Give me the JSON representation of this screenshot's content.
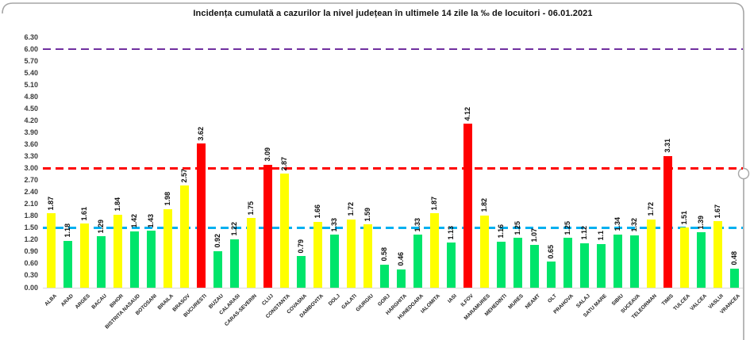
{
  "chart_data": {
    "type": "bar",
    "title": "Incidența cumulată a cazurilor la nivel județean în ultimele 14 zile la ‰ de locuitori - 06.01.2021",
    "categories": [
      "ALBA",
      "ARAD",
      "ARGES",
      "BACAU",
      "BIHOR",
      "BISTRITA NASAUD",
      "BOTOSANI",
      "BRAILA",
      "BRASOV",
      "BUCURESTI",
      "BUZAU",
      "CALARASI",
      "CARAS-SEVERIN",
      "CLUJ",
      "CONSTANTA",
      "COVASNA",
      "DAMBOVITA",
      "DOLJ",
      "GALATI",
      "GIURGIU",
      "GORJ",
      "HARGHITA",
      "HUNEDOARA",
      "IALOMITA",
      "IASI",
      "ILFOV",
      "MARAMURES",
      "MEHEDINTI",
      "MURES",
      "NEAMT",
      "OLT",
      "PRAHOVA",
      "SALAJ",
      "SATU MARE",
      "SIBIU",
      "SUCEAVA",
      "TELEORMAN",
      "TIMIS",
      "TULCEA",
      "VALCEA",
      "VASLUI",
      "VRANCEA"
    ],
    "values": [
      1.87,
      1.18,
      1.61,
      1.29,
      1.84,
      1.42,
      1.43,
      1.98,
      2.57,
      3.62,
      0.92,
      1.22,
      1.75,
      3.09,
      2.87,
      0.79,
      1.66,
      1.33,
      1.72,
      1.59,
      0.58,
      0.46,
      1.33,
      1.87,
      1.13,
      4.12,
      1.82,
      1.16,
      1.25,
      1.07,
      0.65,
      1.25,
      1.12,
      1.1,
      1.34,
      1.32,
      1.72,
      3.31,
      1.51,
      1.39,
      1.67,
      0.48
    ],
    "value_labels": [
      "1.87",
      "1.18",
      "1.61",
      "1.29",
      "1.84",
      "1.42",
      "1.43",
      "1.98",
      "2.57",
      "3.62",
      "0.92",
      "1.22",
      "1.75",
      "3.09",
      "2.87",
      "0.79",
      "1.66",
      "1.33",
      "1.72",
      "1.59",
      "0.58",
      "0.46",
      "1.33",
      "1.87",
      "1.13",
      "4.12",
      "1.82",
      "1.16",
      "1.25",
      "1.07",
      "0.65",
      "1.25",
      "1.12",
      "1.1",
      "1.34",
      "1.32",
      "1.72",
      "3.31",
      "1.51",
      "1.39",
      "1.67",
      "0.48"
    ],
    "ylim": [
      0,
      6.3
    ],
    "yticks": [
      "0.00",
      "0.30",
      "0.60",
      "0.90",
      "1.20",
      "1.50",
      "1.80",
      "2.10",
      "2.40",
      "2.70",
      "3.00",
      "3.30",
      "3.60",
      "3.90",
      "4.20",
      "4.50",
      "4.80",
      "5.10",
      "5.40",
      "5.70",
      "6.00",
      "6.30"
    ],
    "grid": "off",
    "legend": "none",
    "xlabel": "",
    "ylabel": "",
    "thresholds": [
      {
        "value": 6.0,
        "color": "#7030A0",
        "style": "dashed",
        "name": "purple-line-6.00"
      },
      {
        "value": 3.0,
        "color": "#FF0000",
        "style": "dashed",
        "name": "red-line-3.00"
      },
      {
        "value": 1.5,
        "color": "#00B0F0",
        "style": "dashed",
        "name": "blue-line-1.50"
      }
    ],
    "bar_color_rule": {
      "green_below": 1.5,
      "red_above": 3.0,
      "green": "#00E56B",
      "yellow": "#FFFF00",
      "red": "#FF0000"
    },
    "frame": {
      "border_color": "#A6A6A6",
      "axis_line_color": "#D9D9D9",
      "background": "#FFFFFF"
    }
  }
}
